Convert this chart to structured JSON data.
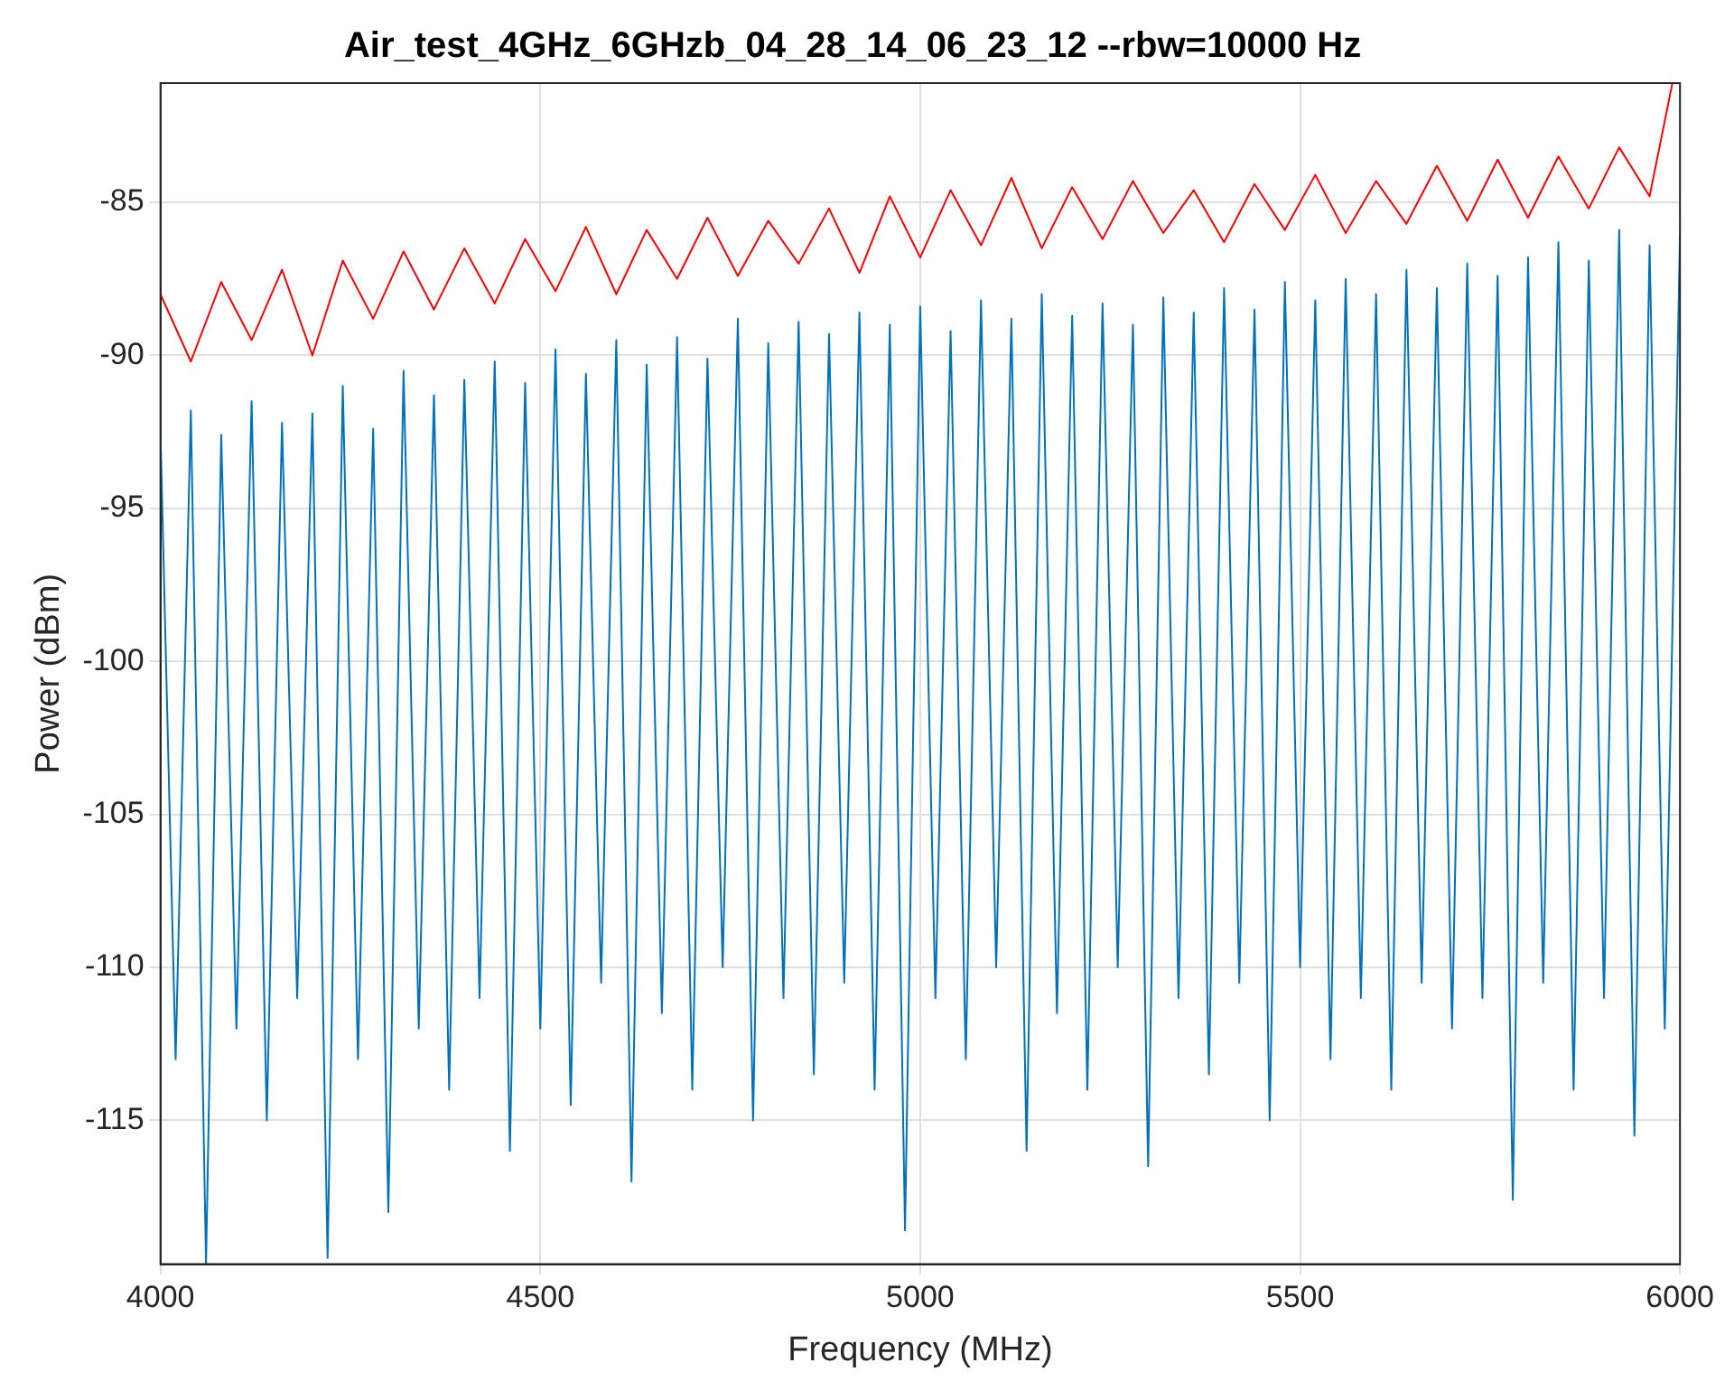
{
  "chart_data": {
    "type": "line",
    "title": "Air_test_4GHz_6GHzb_04_28_14_06_23_12 --rbw=10000 Hz",
    "xlabel": "Frequency (MHz)",
    "ylabel": "Power (dBm)",
    "xlim": [
      4000,
      6000
    ],
    "xticks": [
      4000,
      4500,
      5000,
      5500,
      6000
    ],
    "ylim": [
      -119.7,
      -81.1
    ],
    "yticks": [
      -115,
      -110,
      -105,
      -100,
      -95,
      -90,
      -85
    ],
    "grid": true,
    "legend": false,
    "series": [
      {
        "color": "#0072bd",
        "x": [
          4000,
          4020,
          4040,
          4060,
          4080,
          4100,
          4120,
          4140,
          4160,
          4180,
          4200,
          4220,
          4240,
          4260,
          4280,
          4300,
          4320,
          4340,
          4360,
          4380,
          4400,
          4420,
          4440,
          4460,
          4480,
          4500,
          4520,
          4540,
          4560,
          4580,
          4600,
          4620,
          4640,
          4660,
          4680,
          4700,
          4720,
          4740,
          4760,
          4780,
          4800,
          4820,
          4840,
          4860,
          4880,
          4900,
          4920,
          4940,
          4960,
          4980,
          5000,
          5020,
          5040,
          5060,
          5080,
          5100,
          5120,
          5140,
          5160,
          5180,
          5200,
          5220,
          5240,
          5260,
          5280,
          5300,
          5320,
          5340,
          5360,
          5380,
          5400,
          5420,
          5440,
          5460,
          5480,
          5500,
          5520,
          5540,
          5560,
          5580,
          5600,
          5620,
          5640,
          5660,
          5680,
          5700,
          5720,
          5740,
          5760,
          5780,
          5800,
          5820,
          5840,
          5860,
          5880,
          5900,
          5920,
          5940,
          5960,
          5980,
          6000
        ],
        "values": [
          -92.5,
          -113,
          -91.8,
          -119.7,
          -92.6,
          -112,
          -91.5,
          -115,
          -92.2,
          -111,
          -91.9,
          -119.5,
          -91.0,
          -113,
          -92.4,
          -118,
          -90.5,
          -112,
          -91.3,
          -114,
          -90.8,
          -111,
          -90.2,
          -116,
          -90.9,
          -112,
          -89.8,
          -114.5,
          -90.6,
          -110.5,
          -89.5,
          -117,
          -90.3,
          -111.5,
          -89.4,
          -114,
          -90.1,
          -110,
          -88.8,
          -115,
          -89.6,
          -111,
          -88.9,
          -113.5,
          -89.3,
          -110.5,
          -88.6,
          -114,
          -89.0,
          -118.6,
          -88.4,
          -111,
          -89.2,
          -113,
          -88.2,
          -110,
          -88.8,
          -116,
          -88.0,
          -111.5,
          -88.7,
          -114,
          -88.3,
          -110,
          -89.0,
          -116.5,
          -88.1,
          -111,
          -88.6,
          -113.5,
          -87.8,
          -110.5,
          -88.5,
          -115,
          -87.6,
          -110,
          -88.2,
          -113,
          -87.5,
          -111,
          -88.0,
          -114,
          -87.2,
          -110.5,
          -87.8,
          -112,
          -87.0,
          -111,
          -87.4,
          -117.6,
          -86.8,
          -110.5,
          -86.3,
          -114,
          -86.9,
          -111,
          -85.9,
          -115.5,
          -86.4,
          -112,
          -86.0
        ]
      },
      {
        "color": "#ff0000",
        "x": [
          4000,
          4040,
          4080,
          4120,
          4160,
          4200,
          4240,
          4280,
          4320,
          4360,
          4400,
          4440,
          4480,
          4520,
          4560,
          4600,
          4640,
          4680,
          4720,
          4760,
          4800,
          4840,
          4880,
          4920,
          4960,
          5000,
          5040,
          5080,
          5120,
          5160,
          5200,
          5240,
          5280,
          5320,
          5360,
          5400,
          5440,
          5480,
          5520,
          5560,
          5600,
          5640,
          5680,
          5720,
          5760,
          5800,
          5840,
          5880,
          5920,
          5960,
          5990
        ],
        "values": [
          -88.0,
          -90.2,
          -87.6,
          -89.5,
          -87.2,
          -90.0,
          -86.9,
          -88.8,
          -86.6,
          -88.5,
          -86.5,
          -88.3,
          -86.2,
          -87.9,
          -85.8,
          -88.0,
          -85.9,
          -87.5,
          -85.5,
          -87.4,
          -85.6,
          -87.0,
          -85.2,
          -87.3,
          -84.8,
          -86.8,
          -84.6,
          -86.4,
          -84.2,
          -86.5,
          -84.5,
          -86.2,
          -84.3,
          -86.0,
          -84.6,
          -86.3,
          -84.4,
          -85.9,
          -84.1,
          -86.0,
          -84.3,
          -85.7,
          -83.8,
          -85.6,
          -83.6,
          -85.5,
          -83.5,
          -85.2,
          -83.2,
          -84.8,
          -81.1
        ]
      }
    ]
  }
}
